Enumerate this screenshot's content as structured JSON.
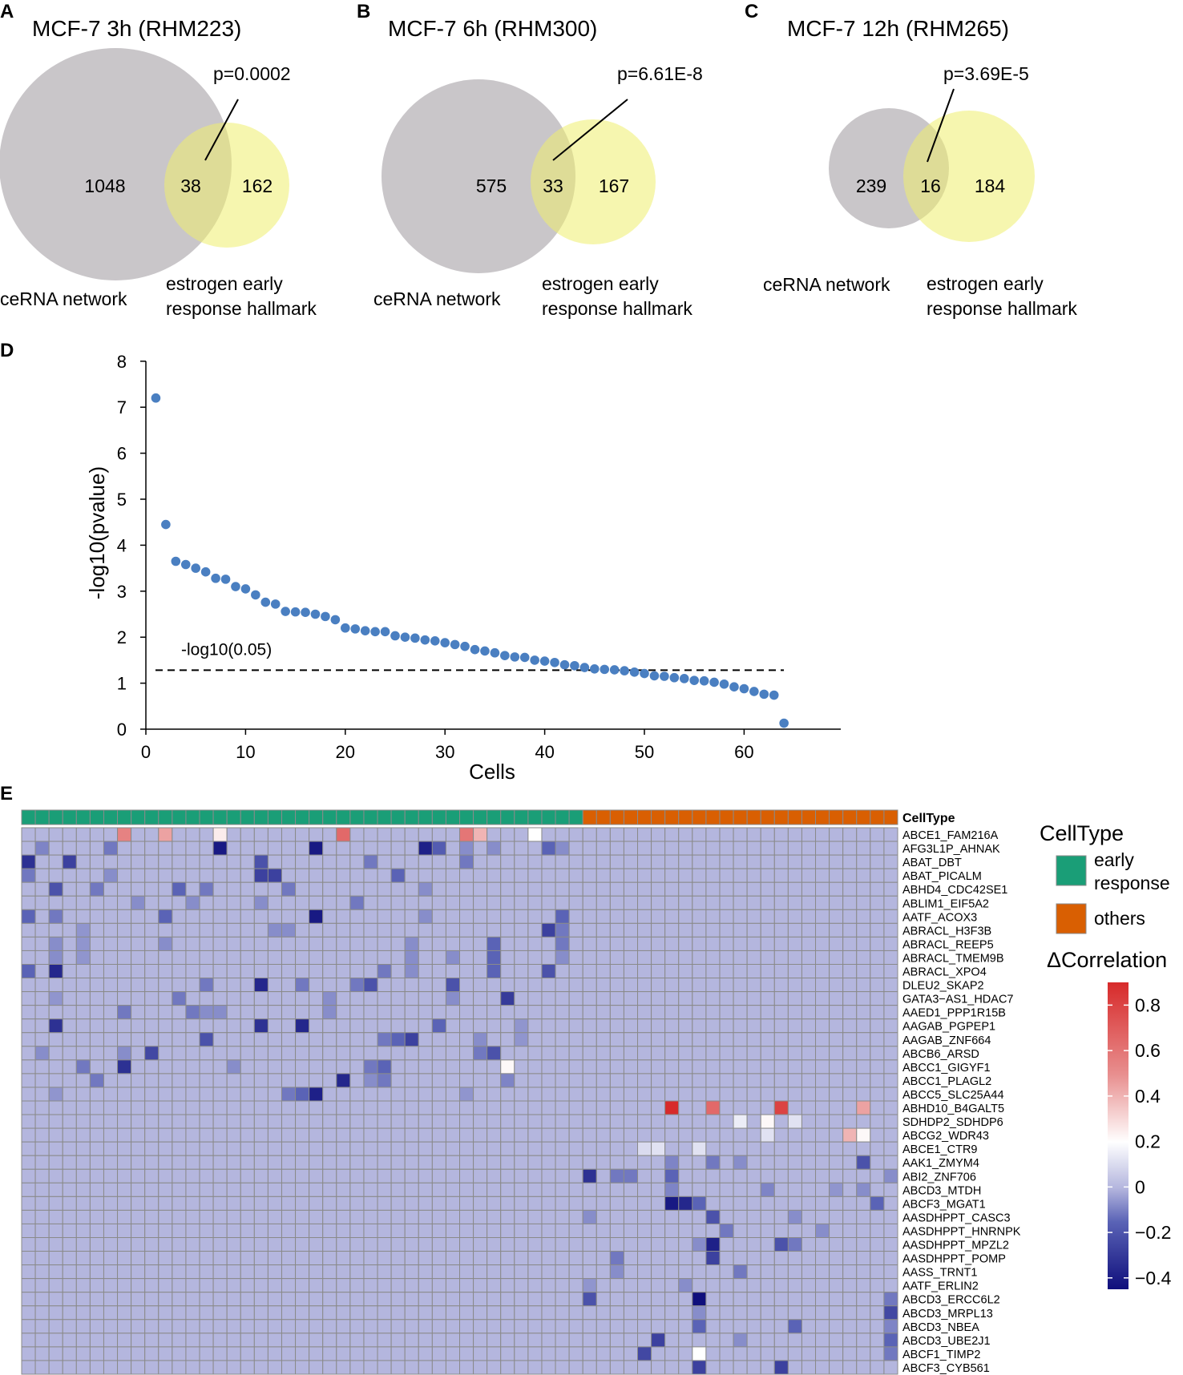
{
  "panels": {
    "A": {
      "letter": "A",
      "title": "MCF-7 3h (RHM223)",
      "pvalue": "p=0.0002",
      "left_count": "1048",
      "overlap_count": "38",
      "right_count": "162",
      "left_label": "ceRNA network",
      "right_label_line1": "estrogen early",
      "right_label_line2": "response hallmark"
    },
    "B": {
      "letter": "B",
      "title": "MCF-7 6h (RHM300)",
      "pvalue": "p=6.61E-8",
      "left_count": "575",
      "overlap_count": "33",
      "right_count": "167",
      "left_label": "ceRNA network",
      "right_label_line1": "estrogen early",
      "right_label_line2": "response hallmark"
    },
    "C": {
      "letter": "C",
      "title": "MCF-7 12h (RHM265)",
      "pvalue": "p=3.69E-5",
      "left_count": "239",
      "overlap_count": "16",
      "right_count": "184",
      "left_label": "ceRNA network",
      "right_label_line1": "estrogen early",
      "right_label_line2": "response hallmark"
    },
    "D": {
      "letter": "D"
    },
    "E": {
      "letter": "E"
    }
  },
  "colors": {
    "venn_gray": "#c9c6c9",
    "venn_yellow": "#efef6e",
    "point_blue": "#4a7fc1",
    "early_response": "#1a9e77",
    "others": "#d95f02",
    "heatmap_base": "#b4b6de",
    "grid_line": "#8a8a8a"
  },
  "chart_data": [
    {
      "type": "scatter",
      "xlabel": "Cells",
      "ylabel": "-log10(pvalue)",
      "xlim": [
        0,
        70
      ],
      "ylim": [
        0,
        8
      ],
      "xticks": [
        "0",
        "10",
        "20",
        "30",
        "40",
        "50",
        "60"
      ],
      "yticks": [
        "0",
        "1",
        "2",
        "3",
        "4",
        "5",
        "6",
        "7",
        "8"
      ],
      "threshold": {
        "value": 1.3,
        "label": "-log10(0.05)"
      },
      "x": [
        1,
        2,
        3,
        4,
        5,
        6,
        7,
        8,
        9,
        10,
        11,
        12,
        13,
        14,
        15,
        16,
        17,
        18,
        19,
        20,
        21,
        22,
        23,
        24,
        25,
        26,
        27,
        28,
        29,
        30,
        31,
        32,
        33,
        34,
        35,
        36,
        37,
        38,
        39,
        40,
        41,
        42,
        43,
        44,
        45,
        46,
        47,
        48,
        49,
        50,
        51,
        52,
        53,
        54,
        55,
        56,
        57,
        58,
        59,
        60,
        61,
        62,
        63,
        64
      ],
      "y": [
        7.2,
        4.45,
        3.65,
        3.58,
        3.5,
        3.42,
        3.28,
        3.26,
        3.1,
        3.05,
        2.92,
        2.76,
        2.72,
        2.56,
        2.55,
        2.54,
        2.5,
        2.45,
        2.38,
        2.2,
        2.18,
        2.14,
        2.12,
        2.12,
        2.03,
        2.0,
        1.98,
        1.94,
        1.92,
        1.88,
        1.84,
        1.8,
        1.73,
        1.7,
        1.66,
        1.6,
        1.57,
        1.56,
        1.5,
        1.48,
        1.45,
        1.4,
        1.38,
        1.34,
        1.31,
        1.3,
        1.29,
        1.27,
        1.24,
        1.21,
        1.16,
        1.15,
        1.12,
        1.1,
        1.06,
        1.05,
        1.02,
        0.98,
        0.92,
        0.88,
        0.82,
        0.76,
        0.74,
        0.13
      ]
    },
    {
      "type": "heatmap",
      "title": "CellType",
      "legend_celltype_title": "CellType",
      "legend_early_line1": "early",
      "legend_early_line2": "response",
      "legend_others": "others",
      "legend_delta_title": "ΔCorrelation",
      "colorbar_ticks": [
        "0.8",
        "0.6",
        "0.4",
        "0.2",
        "0",
        "−0.2",
        "−0.4"
      ],
      "colorbar_values": [
        0.8,
        0.6,
        0.4,
        0.2,
        0,
        -0.2,
        -0.4
      ],
      "color_range": [
        -0.45,
        0.9
      ],
      "celltype_counts": {
        "early": 41,
        "others": 23
      },
      "rows": [
        "ABCE1_FAM216A",
        "AFG3L1P_AHNAK",
        "ABAT_DBT",
        "ABAT_PICALM",
        "ABHD4_CDC42SE1",
        "ABLIM1_EIF5A2",
        "AATF_ACOX3",
        "ABRACL_H3F3B",
        "ABRACL_REEP5",
        "ABRACL_TMEM9B",
        "ABRACL_XPO4",
        "DLEU2_SKAP2",
        "GATA3−AS1_HDAC7",
        "AAED1_PPP1R15B",
        "AAGAB_PGPEP1",
        "AAGAB_ZNF664",
        "ABCB6_ARSD",
        "ABCC1_GIGYF1",
        "ABCC1_PLAGL2",
        "ABCC5_SLC25A44",
        "ABHD10_B4GALT5",
        "SDHDP2_SDHDP6",
        "ABCG2_WDR43",
        "ABCE1_CTR9",
        "AAK1_ZMYM4",
        "ABI2_ZNF706",
        "ABCD3_MTDH",
        "ABCF3_MGAT1",
        "AASDHPPT_CASC3",
        "AASDHPPT_HNRNPK",
        "AASDHPPT_MPZL2",
        "AASDHPPT_POMP",
        "AASS_TRNT1",
        "AATF_ERLIN2",
        "ABCD3_ERCC6L2",
        "ABCD3_MRPL13",
        "ABCD3_NBEA",
        "ABCD3_UBE2J1",
        "ABCF1_TIMP2",
        "ABCF3_CYB561"
      ],
      "cells": [
        [
          0,
          7,
          0.55
        ],
        [
          0,
          10,
          0.45
        ],
        [
          0,
          14,
          0.25
        ],
        [
          0,
          23,
          0.65
        ],
        [
          0,
          32,
          0.6
        ],
        [
          0,
          33,
          0.4
        ],
        [
          0,
          37,
          0.2
        ],
        [
          1,
          1,
          -0.12
        ],
        [
          1,
          6,
          -0.15
        ],
        [
          1,
          14,
          -0.42
        ],
        [
          1,
          21,
          -0.42
        ],
        [
          1,
          29,
          -0.4
        ],
        [
          1,
          30,
          -0.22
        ],
        [
          1,
          32,
          -0.1
        ],
        [
          1,
          34,
          -0.1
        ],
        [
          1,
          38,
          -0.2
        ],
        [
          1,
          39,
          -0.1
        ],
        [
          2,
          0,
          -0.35
        ],
        [
          2,
          3,
          -0.3
        ],
        [
          2,
          17,
          -0.25
        ],
        [
          2,
          25,
          -0.15
        ],
        [
          2,
          32,
          -0.15
        ],
        [
          3,
          0,
          -0.15
        ],
        [
          3,
          6,
          -0.1
        ],
        [
          3,
          17,
          -0.3
        ],
        [
          3,
          18,
          -0.3
        ],
        [
          3,
          27,
          -0.2
        ],
        [
          4,
          2,
          -0.25
        ],
        [
          4,
          5,
          -0.15
        ],
        [
          4,
          11,
          -0.2
        ],
        [
          4,
          13,
          -0.15
        ],
        [
          4,
          19,
          -0.15
        ],
        [
          4,
          29,
          -0.1
        ],
        [
          5,
          8,
          -0.1
        ],
        [
          5,
          12,
          -0.1
        ],
        [
          5,
          17,
          -0.1
        ],
        [
          5,
          24,
          -0.15
        ],
        [
          6,
          0,
          -0.2
        ],
        [
          6,
          2,
          -0.15
        ],
        [
          6,
          10,
          -0.2
        ],
        [
          6,
          21,
          -0.42
        ],
        [
          6,
          29,
          -0.1
        ],
        [
          6,
          39,
          -0.2
        ],
        [
          7,
          4,
          -0.08
        ],
        [
          7,
          18,
          -0.1
        ],
        [
          7,
          19,
          -0.1
        ],
        [
          7,
          38,
          -0.3
        ],
        [
          7,
          39,
          -0.15
        ],
        [
          8,
          2,
          -0.1
        ],
        [
          8,
          4,
          -0.08
        ],
        [
          8,
          10,
          -0.1
        ],
        [
          8,
          28,
          -0.1
        ],
        [
          8,
          34,
          -0.2
        ],
        [
          8,
          39,
          -0.15
        ],
        [
          9,
          2,
          -0.1
        ],
        [
          9,
          4,
          -0.08
        ],
        [
          9,
          28,
          -0.1
        ],
        [
          9,
          31,
          -0.1
        ],
        [
          9,
          34,
          -0.2
        ],
        [
          9,
          39,
          -0.1
        ],
        [
          10,
          0,
          -0.2
        ],
        [
          10,
          2,
          -0.38
        ],
        [
          10,
          26,
          -0.15
        ],
        [
          10,
          28,
          -0.1
        ],
        [
          10,
          34,
          -0.2
        ],
        [
          10,
          38,
          -0.25
        ],
        [
          11,
          13,
          -0.15
        ],
        [
          11,
          17,
          -0.38
        ],
        [
          11,
          20,
          -0.15
        ],
        [
          11,
          24,
          -0.15
        ],
        [
          11,
          25,
          -0.25
        ],
        [
          11,
          31,
          -0.25
        ],
        [
          12,
          2,
          -0.08
        ],
        [
          12,
          11,
          -0.15
        ],
        [
          12,
          22,
          -0.1
        ],
        [
          12,
          31,
          -0.1
        ],
        [
          12,
          35,
          -0.32
        ],
        [
          13,
          7,
          -0.15
        ],
        [
          13,
          12,
          -0.15
        ],
        [
          13,
          13,
          -0.1
        ],
        [
          13,
          14,
          -0.1
        ],
        [
          13,
          22,
          -0.1
        ],
        [
          14,
          2,
          -0.35
        ],
        [
          14,
          17,
          -0.35
        ],
        [
          14,
          20,
          -0.38
        ],
        [
          14,
          30,
          -0.2
        ],
        [
          14,
          36,
          -0.08
        ],
        [
          15,
          13,
          -0.25
        ],
        [
          15,
          26,
          -0.15
        ],
        [
          15,
          27,
          -0.2
        ],
        [
          15,
          28,
          -0.3
        ],
        [
          15,
          33,
          -0.1
        ],
        [
          15,
          36,
          -0.08
        ],
        [
          16,
          1,
          -0.1
        ],
        [
          16,
          7,
          -0.1
        ],
        [
          16,
          9,
          -0.28
        ],
        [
          16,
          33,
          -0.15
        ],
        [
          16,
          34,
          -0.25
        ],
        [
          17,
          4,
          -0.15
        ],
        [
          17,
          7,
          -0.35
        ],
        [
          17,
          15,
          -0.1
        ],
        [
          17,
          25,
          -0.15
        ],
        [
          17,
          26,
          -0.2
        ],
        [
          17,
          35,
          0.22
        ],
        [
          18,
          5,
          -0.15
        ],
        [
          18,
          23,
          -0.38
        ],
        [
          18,
          25,
          -0.1
        ],
        [
          18,
          26,
          -0.15
        ],
        [
          18,
          35,
          -0.12
        ],
        [
          19,
          2,
          -0.08
        ],
        [
          19,
          19,
          -0.15
        ],
        [
          19,
          20,
          -0.2
        ],
        [
          19,
          21,
          -0.4
        ],
        [
          19,
          32,
          -0.08
        ],
        [
          20,
          47,
          0.9
        ],
        [
          20,
          50,
          0.65
        ],
        [
          20,
          55,
          0.8
        ],
        [
          20,
          61,
          0.45
        ],
        [
          21,
          52,
          0.15
        ],
        [
          21,
          54,
          0.22
        ],
        [
          21,
          56,
          0.12
        ],
        [
          22,
          54,
          0.12
        ],
        [
          22,
          60,
          0.4
        ],
        [
          22,
          61,
          0.22
        ],
        [
          23,
          45,
          0.1
        ],
        [
          23,
          46,
          0.12
        ],
        [
          23,
          49,
          0.12
        ],
        [
          24,
          47,
          -0.12
        ],
        [
          24,
          50,
          -0.15
        ],
        [
          24,
          52,
          -0.1
        ],
        [
          24,
          61,
          -0.25
        ],
        [
          25,
          41,
          -0.35
        ],
        [
          25,
          43,
          -0.15
        ],
        [
          25,
          44,
          -0.15
        ],
        [
          25,
          47,
          -0.2
        ],
        [
          25,
          63,
          -0.1
        ],
        [
          26,
          47,
          -0.12
        ],
        [
          26,
          54,
          -0.12
        ],
        [
          26,
          59,
          -0.08
        ],
        [
          26,
          61,
          -0.1
        ],
        [
          27,
          47,
          -0.42
        ],
        [
          27,
          48,
          -0.38
        ],
        [
          27,
          49,
          -0.2
        ],
        [
          27,
          62,
          -0.2
        ],
        [
          28,
          41,
          -0.1
        ],
        [
          28,
          50,
          -0.25
        ],
        [
          28,
          56,
          -0.1
        ],
        [
          29,
          51,
          -0.15
        ],
        [
          29,
          58,
          -0.1
        ],
        [
          30,
          49,
          -0.1
        ],
        [
          30,
          50,
          -0.4
        ],
        [
          30,
          55,
          -0.25
        ],
        [
          30,
          56,
          -0.15
        ],
        [
          31,
          43,
          -0.15
        ],
        [
          31,
          50,
          -0.3
        ],
        [
          32,
          43,
          -0.1
        ],
        [
          32,
          52,
          -0.15
        ],
        [
          33,
          41,
          -0.08
        ],
        [
          33,
          48,
          -0.1
        ],
        [
          34,
          41,
          -0.25
        ],
        [
          34,
          49,
          -0.45
        ],
        [
          34,
          63,
          -0.15
        ],
        [
          35,
          49,
          -0.1
        ],
        [
          35,
          63,
          -0.28
        ],
        [
          36,
          49,
          -0.2
        ],
        [
          36,
          56,
          -0.2
        ],
        [
          36,
          63,
          -0.12
        ],
        [
          37,
          46,
          -0.3
        ],
        [
          37,
          52,
          -0.1
        ],
        [
          37,
          63,
          -0.2
        ],
        [
          38,
          45,
          -0.28
        ],
        [
          38,
          49,
          0.2
        ],
        [
          38,
          63,
          -0.15
        ],
        [
          39,
          49,
          -0.3
        ],
        [
          39,
          55,
          -0.3
        ]
      ]
    }
  ]
}
